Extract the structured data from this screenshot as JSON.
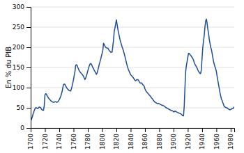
{
  "chart_data": {
    "type": "line",
    "ylabel": "En % du PIB",
    "color": "#1F4E96",
    "grid": "y",
    "xlim": [
      1700,
      1985
    ],
    "ylim": [
      0,
      300
    ],
    "yticks": [
      0,
      50,
      100,
      150,
      200,
      250,
      300
    ],
    "xticks": [
      1700,
      1720,
      1740,
      1760,
      1780,
      1800,
      1820,
      1840,
      1860,
      1880,
      1900,
      1920,
      1940,
      1960,
      1980
    ],
    "x": [
      1700,
      1701,
      1702,
      1703,
      1704,
      1705,
      1706,
      1707,
      1708,
      1709,
      1710,
      1711,
      1712,
      1713,
      1714,
      1715,
      1716,
      1717,
      1718,
      1719,
      1720,
      1721,
      1722,
      1723,
      1724,
      1725,
      1726,
      1727,
      1728,
      1729,
      1730,
      1731,
      1732,
      1733,
      1734,
      1735,
      1736,
      1737,
      1738,
      1739,
      1740,
      1741,
      1742,
      1743,
      1744,
      1745,
      1746,
      1747,
      1748,
      1749,
      1750,
      1751,
      1752,
      1753,
      1754,
      1755,
      1756,
      1757,
      1758,
      1759,
      1760,
      1761,
      1762,
      1763,
      1764,
      1765,
      1766,
      1767,
      1768,
      1769,
      1770,
      1771,
      1772,
      1773,
      1774,
      1775,
      1776,
      1777,
      1778,
      1779,
      1780,
      1781,
      1782,
      1783,
      1784,
      1785,
      1786,
      1787,
      1788,
      1789,
      1790,
      1791,
      1792,
      1793,
      1794,
      1795,
      1796,
      1797,
      1798,
      1799,
      1800,
      1801,
      1802,
      1803,
      1804,
      1805,
      1806,
      1807,
      1808,
      1809,
      1810,
      1811,
      1812,
      1813,
      1814,
      1815,
      1816,
      1817,
      1818,
      1819,
      1820,
      1821,
      1822,
      1823,
      1824,
      1825,
      1826,
      1827,
      1828,
      1829,
      1830,
      1831,
      1832,
      1833,
      1834,
      1835,
      1836,
      1837,
      1838,
      1839,
      1840,
      1841,
      1842,
      1843,
      1844,
      1845,
      1846,
      1847,
      1848,
      1849,
      1850,
      1851,
      1852,
      1853,
      1854,
      1855,
      1856,
      1857,
      1858,
      1859,
      1860,
      1861,
      1862,
      1863,
      1864,
      1865,
      1866,
      1867,
      1868,
      1869,
      1870,
      1871,
      1872,
      1873,
      1874,
      1875,
      1876,
      1877,
      1878,
      1879,
      1880,
      1881,
      1882,
      1883,
      1884,
      1885,
      1886,
      1887,
      1888,
      1889,
      1890,
      1891,
      1892,
      1893,
      1894,
      1895,
      1896,
      1897,
      1898,
      1899,
      1900,
      1901,
      1902,
      1903,
      1904,
      1905,
      1906,
      1907,
      1908,
      1909,
      1910,
      1911,
      1912,
      1913,
      1914,
      1915,
      1916,
      1917,
      1918,
      1919,
      1920,
      1921,
      1922,
      1923,
      1924,
      1925,
      1926,
      1927,
      1928,
      1929,
      1930,
      1931,
      1932,
      1933,
      1934,
      1935,
      1936,
      1937,
      1938,
      1939,
      1940,
      1941,
      1942,
      1943,
      1944,
      1945,
      1946,
      1947,
      1948,
      1949,
      1950,
      1951,
      1952,
      1953,
      1954,
      1955,
      1956,
      1957,
      1958,
      1959,
      1960,
      1961,
      1962,
      1963,
      1964,
      1965,
      1966,
      1967,
      1968,
      1969,
      1970,
      1971,
      1972,
      1973,
      1974,
      1975,
      1976,
      1977,
      1978,
      1979,
      1980,
      1981,
      1982,
      1983,
      1984,
      1985
    ],
    "values": [
      18,
      20,
      26,
      32,
      38,
      43,
      47,
      50,
      50,
      49,
      48,
      50,
      52,
      51,
      50,
      47,
      45,
      44,
      44,
      55,
      82,
      85,
      84,
      80,
      77,
      74,
      72,
      70,
      68,
      66,
      65,
      64,
      64,
      64,
      65,
      65,
      64,
      64,
      65,
      67,
      70,
      74,
      78,
      84,
      90,
      100,
      107,
      109,
      108,
      104,
      101,
      98,
      96,
      94,
      93,
      92,
      92,
      97,
      104,
      112,
      120,
      131,
      140,
      155,
      157,
      155,
      150,
      146,
      142,
      139,
      137,
      135,
      133,
      131,
      128,
      124,
      120,
      124,
      129,
      135,
      142,
      148,
      154,
      158,
      160,
      158,
      154,
      150,
      147,
      143,
      140,
      137,
      133,
      136,
      143,
      150,
      158,
      164,
      170,
      178,
      185,
      192,
      210,
      207,
      203,
      200,
      199,
      198,
      198,
      195,
      192,
      190,
      188,
      188,
      188,
      202,
      218,
      240,
      248,
      258,
      268,
      257,
      246,
      236,
      228,
      220,
      213,
      207,
      201,
      196,
      190,
      184,
      177,
      170,
      162,
      155,
      149,
      144,
      140,
      136,
      132,
      130,
      128,
      126,
      124,
      121,
      118,
      117,
      119,
      120,
      120,
      118,
      115,
      112,
      111,
      112,
      110,
      107,
      106,
      103,
      97,
      93,
      90,
      88,
      86,
      84,
      82,
      80,
      78,
      75,
      73,
      71,
      68,
      66,
      64,
      63,
      62,
      61,
      60,
      61,
      60,
      59,
      58,
      57,
      56,
      56,
      55,
      54,
      53,
      51,
      50,
      49,
      48,
      47,
      46,
      45,
      44,
      43,
      43,
      42,
      40,
      40,
      42,
      41,
      40,
      39,
      38,
      37,
      37,
      36,
      35,
      34,
      32,
      30,
      30,
      55,
      100,
      140,
      155,
      165,
      175,
      185,
      185,
      182,
      180,
      178,
      175,
      172,
      168,
      162,
      158,
      155,
      152,
      148,
      144,
      140,
      138,
      135,
      135,
      145,
      175,
      200,
      215,
      230,
      250,
      265,
      270,
      260,
      245,
      235,
      220,
      210,
      200,
      195,
      185,
      175,
      165,
      158,
      152,
      147,
      140,
      128,
      118,
      108,
      98,
      88,
      80,
      72,
      68,
      63,
      58,
      53,
      52,
      51,
      50,
      50,
      48,
      47,
      46,
      45,
      46,
      47,
      48,
      48,
      50,
      52
    ]
  }
}
